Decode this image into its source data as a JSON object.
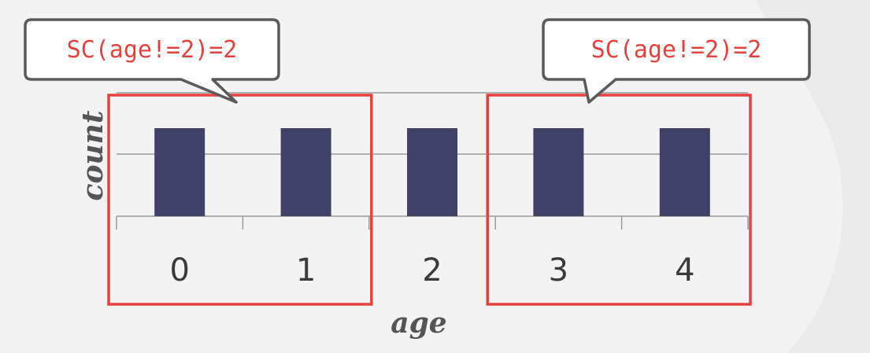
{
  "colors": {
    "bar": "#3f4266",
    "highlight": "#e8413c",
    "grid": "#9a9a9a",
    "callout_border": "#5a5a5a",
    "callout_fill": "#ffffff",
    "background": "#f3f3f3"
  },
  "chart_data": {
    "type": "bar",
    "categories": [
      "0",
      "1",
      "2",
      "3",
      "4"
    ],
    "values": [
      1,
      1,
      1,
      1,
      1
    ],
    "xlabel": "age",
    "ylabel": "count",
    "ylim": [
      0,
      2
    ],
    "grid": true,
    "highlight_groups": [
      {
        "categories": [
          "0",
          "1"
        ],
        "label": "SC(age!=2)=2"
      },
      {
        "categories": [
          "3",
          "4"
        ],
        "label": "SC(age!=2)=2"
      }
    ]
  }
}
